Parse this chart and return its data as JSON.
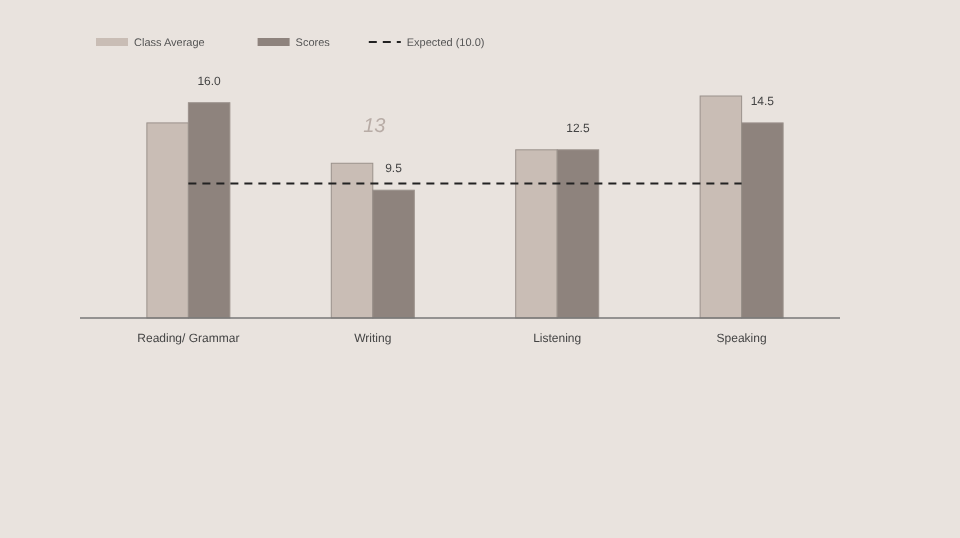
{
  "chart_data": {
    "type": "bar",
    "categories": [
      "Reading/ Grammar",
      "Writing",
      "Listening",
      "Speaking"
    ],
    "series": [
      {
        "name": "Class Average",
        "color": "#c9bdb5",
        "values": [
          14.5,
          11.5,
          12.5,
          16.5
        ]
      },
      {
        "name": "Scores",
        "color": "#8e837d",
        "values": [
          16.0,
          9.5,
          12.5,
          14.5
        ],
        "value_labels": [
          "16.0",
          "9.5",
          "12.5",
          "14.5"
        ]
      }
    ],
    "ref_lines": [
      {
        "axis": "y",
        "value": 10,
        "label": "Expected (10.0)",
        "color": "#222222",
        "line_style": "dashed"
      }
    ],
    "annotations": [
      "13"
    ],
    "legend": "top left"
  }
}
